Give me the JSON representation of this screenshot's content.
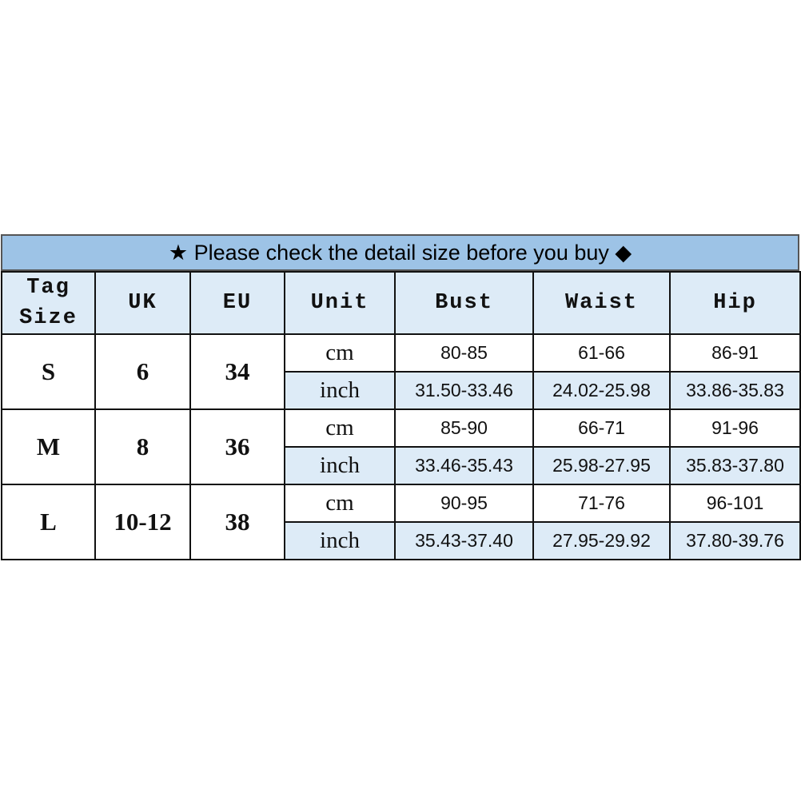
{
  "title": {
    "star": "★",
    "text": "Please check the detail size before you buy",
    "diamond": "◆"
  },
  "colors": {
    "banner": "#9dc3e6",
    "header": "#ddebf7",
    "inch_row": "#ddebf7"
  },
  "headers": [
    "Tag Size",
    "UK",
    "EU",
    "Unit",
    "Bust",
    "Waist",
    "Hip"
  ],
  "rows": [
    {
      "tag": "S",
      "uk": "6",
      "eu": "34",
      "cm": {
        "unit": "cm",
        "bust": "80-85",
        "waist": "61-66",
        "hip": "86-91"
      },
      "inch": {
        "unit": "inch",
        "bust": "31.50-33.46",
        "waist": "24.02-25.98",
        "hip": "33.86-35.83"
      }
    },
    {
      "tag": "M",
      "uk": "8",
      "eu": "36",
      "cm": {
        "unit": "cm",
        "bust": "85-90",
        "waist": "66-71",
        "hip": "91-96"
      },
      "inch": {
        "unit": "inch",
        "bust": "33.46-35.43",
        "waist": "25.98-27.95",
        "hip": "35.83-37.80"
      }
    },
    {
      "tag": "L",
      "uk": "10-12",
      "eu": "38",
      "cm": {
        "unit": "cm",
        "bust": "90-95",
        "waist": "71-76",
        "hip": "96-101"
      },
      "inch": {
        "unit": "inch",
        "bust": "35.43-37.40",
        "waist": "27.95-29.92",
        "hip": "37.80-39.76"
      }
    }
  ]
}
